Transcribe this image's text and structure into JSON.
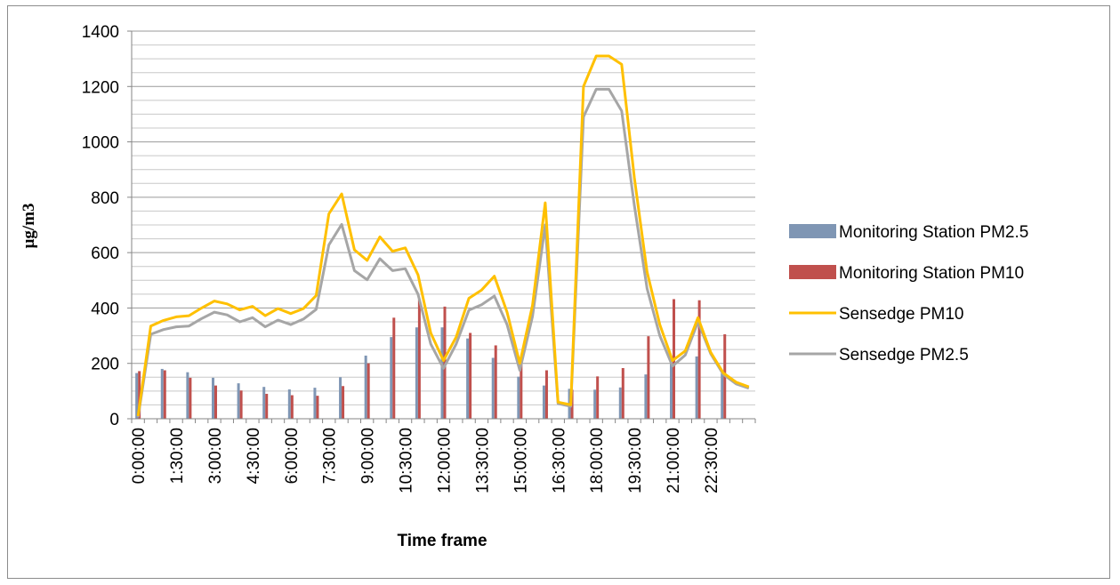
{
  "chart_data": {
    "type": "bar",
    "title": "",
    "xlabel": "Time frame",
    "ylabel": "µg/m3",
    "ylim": [
      0,
      1400
    ],
    "yticks": [
      0,
      200,
      400,
      600,
      800,
      1000,
      1200,
      1400
    ],
    "grid": true,
    "legend_position": "right",
    "x_tick_labels": [
      "0:00:00",
      "1:30:00",
      "3:00:00",
      "4:30:00",
      "6:00:00",
      "7:30:00",
      "9:00:00",
      "10:30:00",
      "12:00:00",
      "13:30:00",
      "15:00:00",
      "16:30:00",
      "18:00:00",
      "19:30:00",
      "21:00:00",
      "22:30:00"
    ],
    "bar_series": [
      {
        "name": "Monitoring Station PM2.5",
        "color": "#7f96b4",
        "values": [
          165,
          180,
          168,
          148,
          128,
          115,
          106,
          112,
          150,
          228,
          295,
          330,
          330,
          290,
          220,
          152,
          120,
          108,
          105,
          113,
          160,
          200,
          225,
          165
        ]
      },
      {
        "name": "Monitoring Station PM10",
        "color": "#c0504d",
        "values": [
          172,
          175,
          148,
          120,
          102,
          90,
          85,
          83,
          118,
          200,
          365,
          430,
          405,
          310,
          265,
          210,
          175,
          105,
          153,
          183,
          298,
          432,
          428,
          305
        ]
      }
    ],
    "line_series": [
      {
        "name": "Sensedge PM10",
        "color": "#ffc000",
        "values": [
          10,
          335,
          355,
          368,
          372,
          400,
          425,
          415,
          393,
          406,
          372,
          398,
          380,
          398,
          445,
          740,
          812,
          610,
          572,
          657,
          605,
          617,
          520,
          310,
          210,
          295,
          435,
          465,
          515,
          385,
          200,
          410,
          780,
          60,
          50,
          1200,
          1310,
          1310,
          1280,
          870,
          530,
          340,
          210,
          245,
          365,
          240,
          165,
          132,
          115
        ]
      },
      {
        "name": "Sensedge PM2.5",
        "color": "#a6a6a6",
        "values": [
          5,
          305,
          322,
          332,
          335,
          362,
          385,
          375,
          350,
          365,
          332,
          356,
          340,
          360,
          395,
          628,
          702,
          535,
          502,
          578,
          535,
          542,
          450,
          270,
          182,
          270,
          392,
          412,
          443,
          340,
          175,
          370,
          700,
          55,
          45,
          1090,
          1190,
          1190,
          1112,
          770,
          470,
          300,
          190,
          230,
          350,
          235,
          160,
          126,
          110
        ]
      }
    ]
  }
}
